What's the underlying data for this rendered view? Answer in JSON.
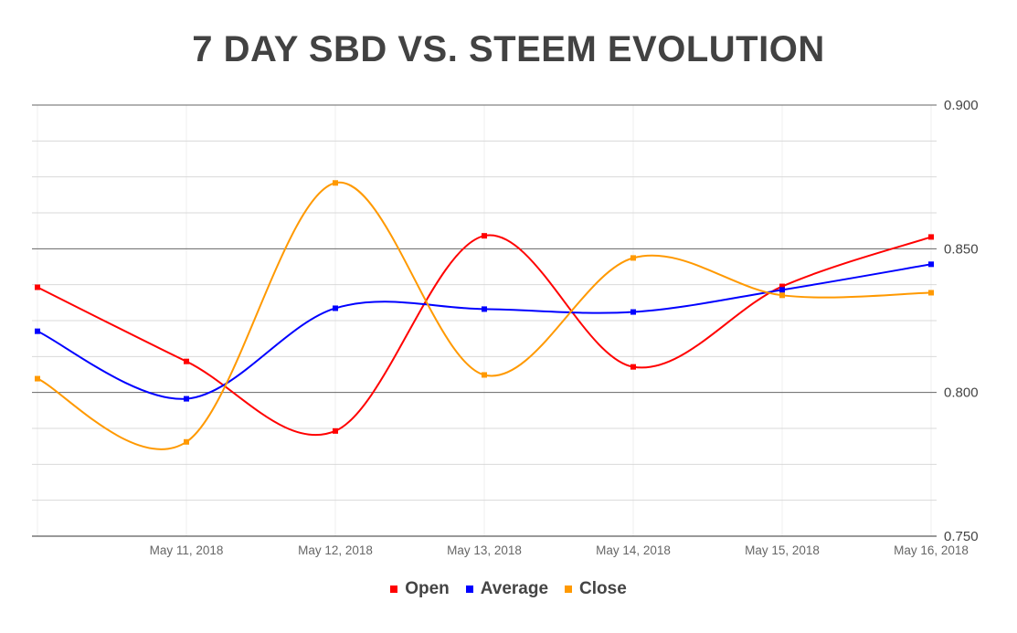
{
  "chart_data": {
    "type": "line",
    "title": "7 DAY SBD VS. STEEM EVOLUTION",
    "xlabel": "",
    "ylabel": "",
    "categories": [
      "",
      "May 11, 2018",
      "May 12, 2018",
      "May 13, 2018",
      "May 14, 2018",
      "May 15, 2018",
      "May 16, 2018"
    ],
    "ylim": [
      0.75,
      0.9
    ],
    "y_ticks": [
      "0.900",
      "0.850",
      "0.800",
      "0.750"
    ],
    "y_axis_side": "right",
    "grid": true,
    "curve": "smooth",
    "legend_position": "bottom",
    "series": [
      {
        "name": "Open",
        "color": "#ff0000",
        "values": [
          0.8366,
          0.8108,
          0.7866,
          0.8545,
          0.8089,
          0.8369,
          0.8541
        ]
      },
      {
        "name": "Average",
        "color": "#0000ff",
        "values": [
          0.8213,
          0.7978,
          0.8293,
          0.829,
          0.828,
          0.8357,
          0.8446
        ]
      },
      {
        "name": "Close",
        "color": "#ff9900",
        "values": [
          0.8048,
          0.7828,
          0.8729,
          0.8061,
          0.8468,
          0.8338,
          0.8347
        ]
      }
    ]
  }
}
